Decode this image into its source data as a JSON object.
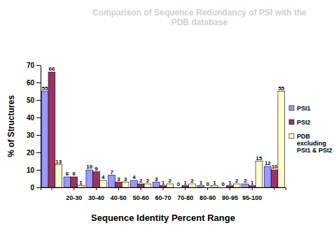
{
  "chart_data": {
    "type": "bar",
    "title": "Comparison of Sequence Redundancy of PSI with the PDB database",
    "x_label": "Sequence Identity Percent Range",
    "y_label": "% of Structures",
    "categories": [
      null,
      "20-30",
      "30-40",
      "40-50",
      "50-60",
      "60-70",
      "70-80",
      "80-90",
      "90-95",
      "95-100",
      null
    ],
    "series": [
      {
        "name": "PSI1",
        "color": "#9999ff",
        "values": [
          55,
          6,
          10,
          7,
          4,
          3,
          0,
          1,
          0,
          2,
          12
        ]
      },
      {
        "name": "PSI2",
        "color": "#993366",
        "values": [
          66,
          6,
          9,
          3,
          2,
          1,
          1,
          0,
          1,
          1,
          10
        ]
      },
      {
        "name": "PDB excluding PSI1 & PSI2",
        "color": "#ffffcc",
        "values": [
          13,
          1,
          4,
          3,
          2,
          2,
          2,
          1,
          2,
          15,
          55
        ]
      }
    ],
    "ylim": [
      0,
      70
    ],
    "yticks": [
      0,
      10,
      20,
      30,
      40,
      50,
      60,
      70
    ],
    "grid": false,
    "legend": "right",
    "data_labels": true
  }
}
